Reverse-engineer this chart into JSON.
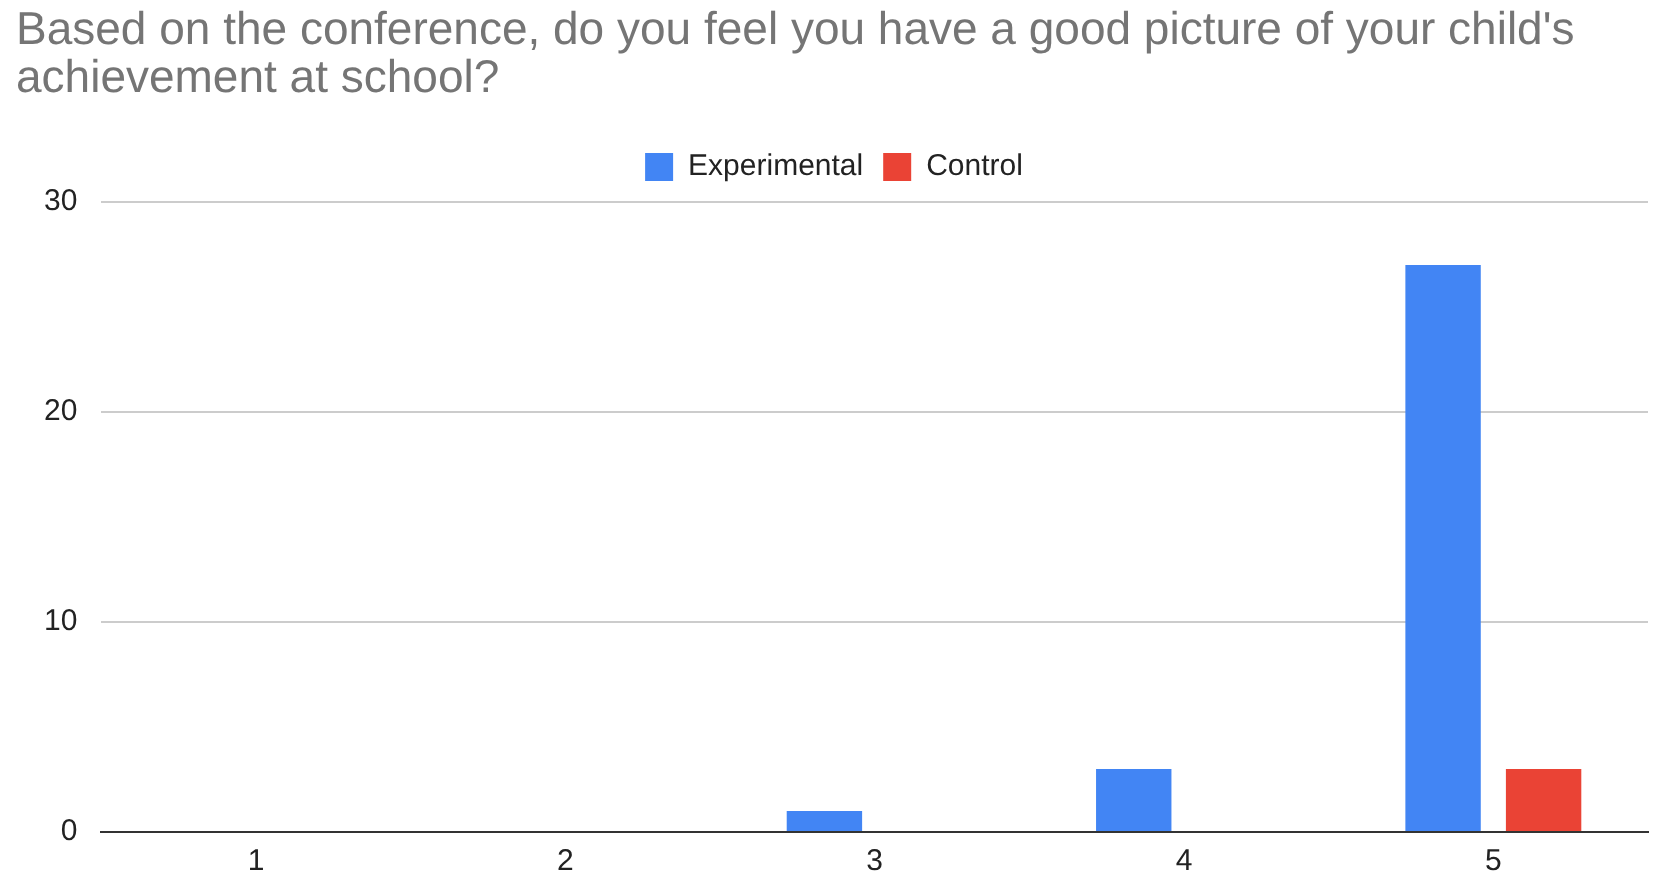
{
  "chart_data": {
    "type": "bar",
    "title": "Based on the conference, do you feel you have a good picture of your child's achievement at school?",
    "categories": [
      "1",
      "2",
      "3",
      "4",
      "5"
    ],
    "series": [
      {
        "name": "Experimental",
        "color": "#4285f4",
        "values": [
          0,
          0,
          1,
          3,
          27
        ]
      },
      {
        "name": "Control",
        "color": "#ea4335",
        "values": [
          0,
          0,
          0,
          0,
          3
        ]
      }
    ],
    "ylim": [
      0,
      30
    ],
    "yticks": [
      0,
      10,
      20,
      30
    ],
    "grid": "y",
    "legend": "top"
  }
}
